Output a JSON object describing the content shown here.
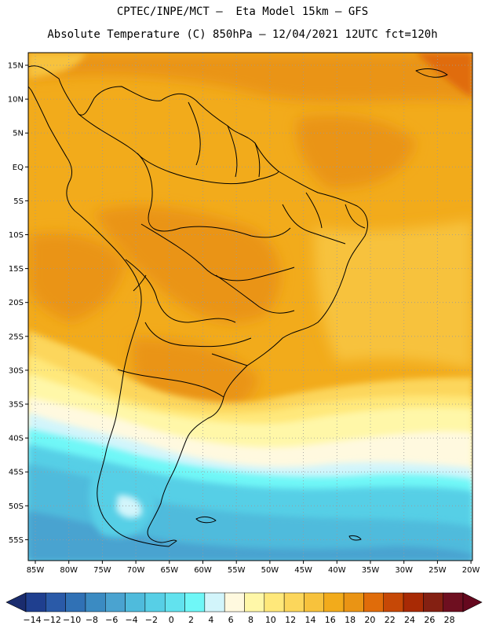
{
  "header": {
    "line1": "CPTEC/INPE/MCT –  Eta Model 15km – GFS",
    "line2": "Absolute Temperature (C) 850hPa – 12/04/2021 12UTC fct=120h"
  },
  "map": {
    "lat_labels": [
      "15N",
      "10N",
      "5N",
      "EQ",
      "5S",
      "10S",
      "15S",
      "20S",
      "25S",
      "30S",
      "35S",
      "40S",
      "45S",
      "50S",
      "55S"
    ],
    "lon_labels": [
      "85W",
      "80W",
      "75W",
      "70W",
      "65W",
      "60W",
      "55W",
      "50W",
      "45W",
      "40W",
      "35W",
      "30W",
      "25W",
      "20W"
    ],
    "grid": "dotted",
    "region": "South America"
  },
  "colorbar": {
    "labels": [
      "-14",
      "-12",
      "-10",
      "-8",
      "-6",
      "-4",
      "-2",
      "0",
      "2",
      "4",
      "6",
      "8",
      "10",
      "12",
      "14",
      "16",
      "18",
      "20",
      "22",
      "24",
      "26",
      "28"
    ],
    "colors": [
      "#1f3f8f",
      "#2a5aa8",
      "#3071b5",
      "#3b8bc2",
      "#4aa3d0",
      "#4fbbdc",
      "#57cfe6",
      "#62e2ee",
      "#6ff7f7",
      "#d2f5fb",
      "#fff9df",
      "#fff7a8",
      "#ffe87a",
      "#fcd65b",
      "#f7c23c",
      "#f2ab1b",
      "#ea9414",
      "#e06c0a",
      "#c64806",
      "#a82a05",
      "#842012",
      "#6e0f20"
    ],
    "under_color": "#1a2c6e",
    "over_color": "#65081e"
  }
}
